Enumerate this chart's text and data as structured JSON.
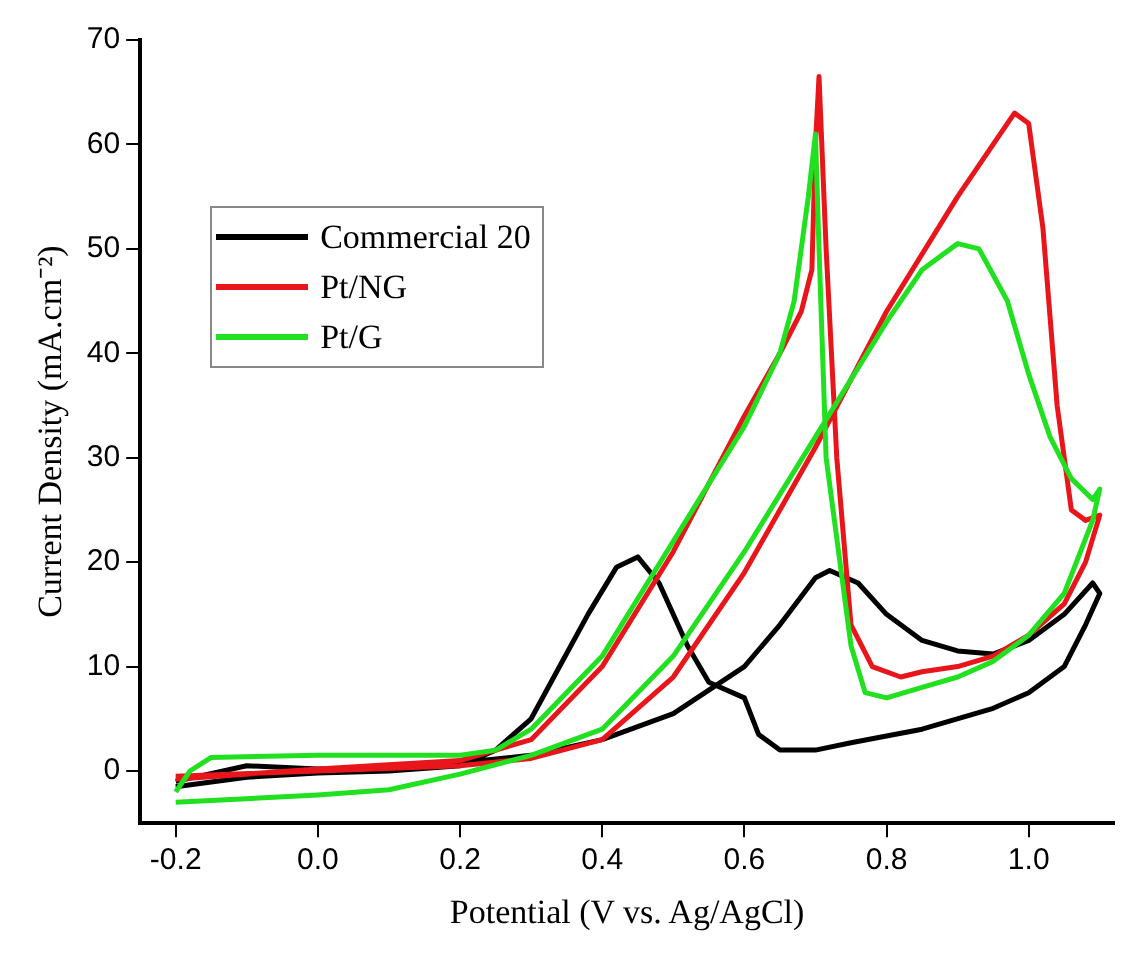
{
  "chart_data": {
    "type": "line",
    "xlabel": "Potential (V vs. Ag/AgCl)",
    "ylabel": "Current Density (mA.cm⁻²)",
    "xlim": [
      -0.25,
      1.12
    ],
    "ylim": [
      -5,
      70
    ],
    "xticks": [
      {
        "value": -0.2,
        "label": "-0.2"
      },
      {
        "value": 0,
        "label": "0.0"
      },
      {
        "value": 0.2,
        "label": "0.2"
      },
      {
        "value": 0.4,
        "label": "0.4"
      },
      {
        "value": 0.6,
        "label": "0.6"
      },
      {
        "value": 0.8,
        "label": "0.8"
      },
      {
        "value": 1,
        "label": "1.0"
      }
    ],
    "yticks": [
      0,
      10,
      20,
      30,
      40,
      50,
      60,
      70
    ],
    "grid": false,
    "legend": "top left",
    "line_style": "solid",
    "marker": "none",
    "series": [
      {
        "name": "Commercial 20",
        "color": "#000000",
        "x": [
          -0.2,
          -0.1,
          0,
          0.1,
          0.2,
          0.3,
          0.4,
          0.5,
          0.6,
          0.65,
          0.7,
          0.72,
          0.76,
          0.8,
          0.85,
          0.9,
          0.95,
          1.0,
          1.05,
          1.09,
          1.1,
          1.08,
          1.05,
          1.0,
          0.95,
          0.85,
          0.75,
          0.7,
          0.65,
          0.62,
          0.6,
          0.55,
          0.52,
          0.48,
          0.45,
          0.42,
          0.38,
          0.34,
          0.3,
          0.25,
          0.2,
          0.1,
          0,
          -0.1,
          -0.2
        ],
        "values": [
          -1,
          0.5,
          0.2,
          0.3,
          0.8,
          1.5,
          3,
          5.5,
          10,
          14,
          18.5,
          19.2,
          18,
          15,
          12.5,
          11.5,
          11.2,
          12.5,
          15,
          18,
          17,
          14,
          10,
          7.5,
          6,
          4,
          2.7,
          2,
          2,
          3.5,
          7,
          8.5,
          12,
          18,
          20.5,
          19.5,
          15,
          10,
          5,
          2,
          0.5,
          0,
          -0.2,
          -0.6,
          -1.5
        ]
      },
      {
        "name": "Pt/NG",
        "color": "#e8151b",
        "x": [
          -0.2,
          0,
          0.2,
          0.3,
          0.4,
          0.5,
          0.6,
          0.7,
          0.8,
          0.9,
          0.95,
          0.98,
          1.0,
          1.02,
          1.04,
          1.06,
          1.08,
          1.1,
          1.08,
          1.05,
          1.0,
          0.95,
          0.9,
          0.85,
          0.82,
          0.78,
          0.75,
          0.73,
          0.715,
          0.705,
          0.7,
          0.695,
          0.68,
          0.65,
          0.6,
          0.5,
          0.4,
          0.3,
          0.2,
          0,
          -0.2
        ],
        "values": [
          -0.5,
          0,
          0.5,
          1.2,
          3,
          9,
          19,
          31,
          44,
          55,
          60,
          63,
          62,
          52,
          35,
          25,
          24,
          24.5,
          20,
          16,
          13,
          11,
          10,
          9.5,
          9,
          10,
          14,
          30,
          50,
          66.5,
          60,
          48,
          44,
          40,
          34,
          21,
          10,
          3,
          1,
          0.2,
          -0.8
        ]
      },
      {
        "name": "Pt/G",
        "color": "#20e020",
        "x": [
          -0.2,
          0,
          0.1,
          0.2,
          0.3,
          0.4,
          0.5,
          0.6,
          0.7,
          0.8,
          0.85,
          0.9,
          0.93,
          0.97,
          1.0,
          1.03,
          1.06,
          1.09,
          1.1,
          1.09,
          1.05,
          1.0,
          0.95,
          0.9,
          0.85,
          0.8,
          0.77,
          0.75,
          0.715,
          0.705,
          0.7,
          0.69,
          0.67,
          0.65,
          0.6,
          0.5,
          0.4,
          0.3,
          0.25,
          0.2,
          0,
          -0.15,
          -0.18,
          -0.2
        ],
        "values": [
          -3,
          -2.3,
          -1.8,
          -0.3,
          1.5,
          4,
          11,
          21,
          32,
          43,
          48,
          50.5,
          50,
          45,
          38,
          32,
          28,
          26,
          27,
          24,
          17,
          13,
          10.5,
          9,
          8,
          7,
          7.5,
          12,
          30,
          50,
          61,
          55,
          45,
          40,
          33,
          22,
          11,
          4,
          2,
          1.5,
          1.5,
          1.3,
          0,
          -2
        ]
      }
    ]
  }
}
